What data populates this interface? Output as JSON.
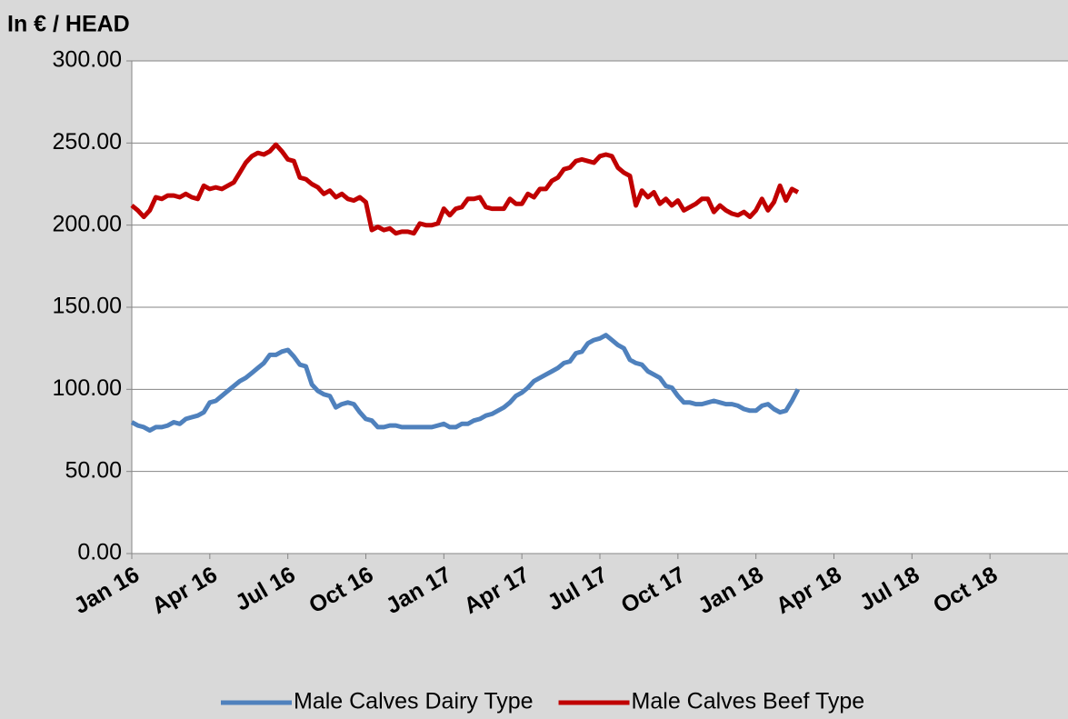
{
  "chart_data": {
    "type": "line",
    "title": "In € / HEAD",
    "categories": [
      "Jan 16",
      null,
      null,
      null,
      null,
      null,
      null,
      null,
      null,
      null,
      null,
      null,
      null,
      "Apr 16",
      null,
      null,
      null,
      null,
      null,
      null,
      null,
      null,
      null,
      null,
      null,
      null,
      "Jul 16",
      null,
      null,
      null,
      null,
      null,
      null,
      null,
      null,
      null,
      null,
      null,
      null,
      "Oct 16",
      null,
      null,
      null,
      null,
      null,
      null,
      null,
      null,
      null,
      null,
      null,
      null,
      "Jan 17",
      null,
      null,
      null,
      null,
      null,
      null,
      null,
      null,
      null,
      null,
      null,
      null,
      "Apr 17",
      null,
      null,
      null,
      null,
      null,
      null,
      null,
      null,
      null,
      null,
      null,
      null,
      "Jul 17",
      null,
      null,
      null,
      null,
      null,
      null,
      null,
      null,
      null,
      null,
      null,
      null,
      "Oct 17",
      null,
      null,
      null,
      null,
      null,
      null,
      null,
      null,
      null,
      null,
      null,
      null,
      "Jan 18",
      null,
      null,
      null,
      null,
      null,
      null,
      null,
      null,
      null,
      null,
      null,
      null,
      "Apr 18",
      null,
      null,
      null,
      null,
      null,
      null,
      null,
      null,
      null,
      null,
      null,
      null,
      "Jul 18",
      null,
      null,
      null,
      null,
      null,
      null,
      null,
      null,
      null,
      null,
      null,
      null,
      "Oct 18",
      null,
      null,
      null,
      null,
      null,
      null,
      null,
      null,
      null,
      null,
      null,
      null,
      null
    ],
    "series": [
      {
        "name": "Male Calves Dairy Type",
        "color": "#4f81bd",
        "values": [
          80,
          78,
          77,
          75,
          77,
          77,
          78,
          80,
          79,
          82,
          83,
          84,
          86,
          92,
          93,
          96,
          99,
          102,
          105,
          107,
          110,
          113,
          116,
          121,
          121,
          123,
          124,
          120,
          115,
          114,
          103,
          99,
          97,
          96,
          89,
          91,
          92,
          91,
          86,
          82,
          81,
          77,
          77,
          78,
          78,
          77,
          77,
          77,
          77,
          77,
          77,
          78,
          79,
          77,
          77,
          79,
          79,
          81,
          82,
          84,
          85,
          87,
          89,
          92,
          96,
          98,
          101,
          105,
          107,
          109,
          111,
          113,
          116,
          117,
          122,
          123,
          128,
          130,
          131,
          133,
          130,
          127,
          125,
          118,
          116,
          115,
          111,
          109,
          107,
          102,
          101,
          96,
          92,
          92,
          91,
          91,
          92,
          93,
          92,
          91,
          91,
          90,
          88,
          87,
          87,
          90,
          91,
          88,
          86,
          87,
          93,
          100,
          null,
          null,
          null,
          null,
          null,
          null,
          null,
          null,
          null,
          null,
          null,
          null,
          null,
          null,
          null,
          null,
          null,
          null,
          null,
          null,
          null,
          null,
          null,
          null,
          null,
          null,
          null,
          null,
          null,
          null,
          null,
          null,
          null,
          null,
          null,
          null,
          null,
          null,
          null,
          null,
          null,
          null,
          null,
          null,
          null
        ]
      },
      {
        "name": "Male Calves Beef Type",
        "color": "#c00000",
        "values": [
          212,
          209,
          205,
          209,
          217,
          216,
          218,
          218,
          217,
          219,
          217,
          216,
          224,
          222,
          223,
          222,
          224,
          226,
          232,
          238,
          242,
          244,
          243,
          245,
          249,
          245,
          240,
          239,
          229,
          228,
          225,
          223,
          219,
          221,
          217,
          219,
          216,
          215,
          217,
          214,
          197,
          199,
          197,
          198,
          195,
          196,
          196,
          195,
          201,
          200,
          200,
          201,
          210,
          206,
          210,
          211,
          216,
          216,
          217,
          211,
          210,
          210,
          210,
          216,
          213,
          213,
          219,
          217,
          222,
          222,
          227,
          229,
          234,
          235,
          239,
          240,
          239,
          238,
          242,
          243,
          242,
          235,
          232,
          230,
          212,
          221,
          217,
          220,
          213,
          216,
          212,
          215,
          209,
          211,
          213,
          216,
          216,
          208,
          212,
          209,
          207,
          206,
          208,
          205,
          209,
          216,
          209,
          214,
          224,
          215,
          222,
          220,
          null,
          null,
          null,
          null,
          null,
          null,
          null,
          null,
          null,
          null,
          null,
          null,
          null,
          null,
          null,
          null,
          null,
          null,
          null,
          null,
          null,
          null,
          null,
          null,
          null,
          null,
          null,
          null,
          null,
          null,
          null,
          null,
          null,
          null,
          null,
          null,
          null,
          null,
          null,
          null,
          null,
          null,
          null,
          null,
          null
        ]
      }
    ],
    "ylim": [
      0,
      300
    ],
    "yticks": [
      {
        "value": 0,
        "label": "0.00"
      },
      {
        "value": 50,
        "label": "50.00"
      },
      {
        "value": 100,
        "label": "100.00"
      },
      {
        "value": 150,
        "label": "150.00"
      },
      {
        "value": 200,
        "label": "200.00"
      },
      {
        "value": 250,
        "label": "250.00"
      },
      {
        "value": 300,
        "label": "300.00"
      }
    ],
    "grid": true,
    "legend": "bottom"
  }
}
